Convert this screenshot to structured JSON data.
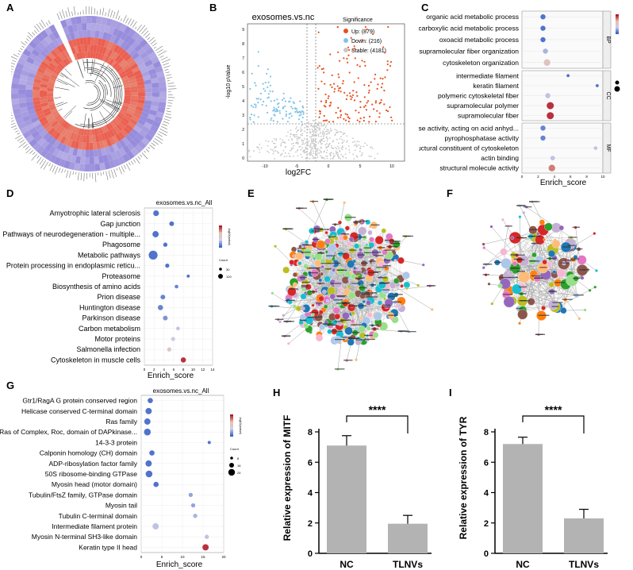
{
  "panel_labels": {
    "A": "A",
    "B": "B",
    "C": "C",
    "D": "D",
    "E": "E",
    "F": "F",
    "G": "G",
    "H": "H",
    "I": "I"
  },
  "colors": {
    "up": "#e8501d",
    "down": "#7fc3e6",
    "stable": "#c8c8c8",
    "bar": "#b3b3b3",
    "red": "#b2182b",
    "blue": "#3b63c8"
  },
  "icons": {
    "heatmap": "circular-heatmap-icon",
    "network": "network-graph-icon"
  },
  "chart_data": [
    {
      "id": "B",
      "type": "scatter",
      "title": "exosomes.vs.nc",
      "xlabel": "log2FC",
      "ylabel": "-log10 pValue",
      "legend": {
        "title": "Significance",
        "entries": [
          "Up: (879)",
          "Down: (216)",
          "Stable: (4181)"
        ],
        "placement": "top-right"
      },
      "series": [
        {
          "name": "Up",
          "count": 879
        },
        {
          "name": "Down",
          "count": 216
        },
        {
          "name": "Stable",
          "count": 4181
        }
      ]
    },
    {
      "id": "C",
      "type": "scatter",
      "xlabel": "Enrich_score",
      "xlim": [
        0,
        10
      ],
      "xticks": [
        "0",
        "2",
        "4",
        "6",
        "8",
        "10"
      ],
      "groups": [
        {
          "name": "BP",
          "terms": [
            "organic acid metabolic process",
            "carboxylic acid metabolic process",
            "oxoacid metabolic process",
            "supramolecular fiber organization",
            "cytoskeleton organization"
          ],
          "x": [
            2.6,
            2.6,
            2.6,
            2.9,
            3.1
          ],
          "color_val": [
            0.05,
            0.05,
            0.05,
            0.25,
            0.55
          ],
          "size": [
            1,
            1,
            1,
            1,
            1.3
          ]
        },
        {
          "name": "CC",
          "terms": [
            "intermediate filament",
            "keratin filament",
            "polymeric cytoskeletal fiber",
            "supramolecular polymer",
            "supramolecular fiber"
          ],
          "x": [
            5.7,
            9.3,
            3.2,
            3.5,
            3.5
          ],
          "color_val": [
            0.05,
            0.05,
            0.3,
            0.95,
            0.95
          ],
          "size": [
            0.6,
            0.6,
            1,
            1.4,
            1.4
          ]
        },
        {
          "name": "MF",
          "terms": [
            "hydrolase activity, acting on acid anhyd...",
            "pyrophosphatase activity",
            "structural constituent of cytoskeleton",
            "actin binding",
            "structural molecule activity"
          ],
          "x": [
            2.6,
            2.6,
            9.1,
            3.8,
            3.7
          ],
          "color_val": [
            0.1,
            0.1,
            0.3,
            0.3,
            0.8
          ],
          "size": [
            1,
            1,
            0.7,
            0.9,
            1.3
          ]
        }
      ]
    },
    {
      "id": "D",
      "type": "scatter",
      "title": "exosomes.vs.nc_All",
      "xlabel": "Enrich_score",
      "xlim": [
        0,
        14
      ],
      "xticks": [
        "0",
        "2",
        "4",
        "6",
        "8",
        "10",
        "12",
        "14"
      ],
      "legend": {
        "color_title": "-log10(pvalue)",
        "size_title": "Count",
        "sizes": [
          "30",
          "120"
        ]
      },
      "terms": [
        "Amyotrophic lateral sclerosis",
        "Gap junction",
        "Pathways of neurodegeneration - multiple...",
        "Phagosome",
        "Metabolic pathways",
        "Protein processing in endoplasmic reticu...",
        "Proteasome",
        "Biosynthesis of amino acids",
        "Prion disease",
        "Huntington disease",
        "Parkinson disease",
        "Carbon metabolism",
        "Motor proteins",
        "Salmonella infection",
        "Cytoskeleton in muscle cells"
      ],
      "x": [
        2.4,
        5.6,
        2.3,
        4.3,
        1.8,
        4.7,
        9.0,
        6.6,
        3.8,
        3.3,
        4.3,
        6.9,
        5.9,
        5.1,
        8.0
      ],
      "color_val": [
        0.05,
        0.05,
        0.05,
        0.05,
        0.05,
        0.05,
        0.05,
        0.1,
        0.1,
        0.1,
        0.15,
        0.3,
        0.35,
        0.5,
        0.95
      ],
      "size": [
        1.1,
        0.9,
        1.2,
        0.8,
        1.7,
        0.8,
        0.6,
        0.7,
        0.9,
        1.0,
        0.9,
        0.7,
        0.8,
        0.8,
        1.0
      ]
    },
    {
      "id": "G",
      "type": "scatter",
      "title": "exosomes.vs.nc_All",
      "xlabel": "Enrich_score",
      "xlim": [
        0,
        20
      ],
      "xticks": [
        "0",
        "5",
        "10",
        "15",
        "20"
      ],
      "legend": {
        "color_title": "-log10(pvalue)",
        "size_title": "Count",
        "sizes": [
          "8",
          "16",
          "24"
        ]
      },
      "terms": [
        "Gtr1/RagA G protein conserved region",
        "Helicase conserved C-terminal domain",
        "Ras family",
        "Ras of Complex, Roc, domain of DAPkinase...",
        "14-3-3 protein",
        "Calponin homology (CH) domain",
        "ADP-ribosylation factor family",
        "50S ribosome-binding GTPase",
        "Myosin head (motor domain)",
        "Tubulin/FtsZ family, GTPase domain",
        "Myosin tail",
        "Tubulin C-terminal domain",
        "Intermediate filament protein",
        "Myosin N-terminal SH3-like domain",
        "Keratin type II head"
      ],
      "x": [
        2.2,
        1.8,
        1.5,
        1.5,
        16.5,
        2.6,
        1.8,
        1.9,
        3.6,
        12.0,
        12.6,
        13.1,
        3.5,
        15.9,
        15.6
      ],
      "color_val": [
        0.05,
        0.05,
        0.05,
        0.05,
        0.05,
        0.05,
        0.05,
        0.05,
        0.05,
        0.2,
        0.2,
        0.25,
        0.3,
        0.3,
        0.95
      ],
      "size": [
        1.0,
        1.2,
        1.2,
        1.3,
        0.6,
        1.0,
        1.2,
        1.3,
        1.0,
        0.8,
        0.8,
        0.8,
        1.2,
        0.8,
        1.2
      ]
    },
    {
      "id": "H",
      "type": "bar",
      "categories": [
        "NC",
        "TLNVs"
      ],
      "values": [
        7.1,
        1.95
      ],
      "errors": [
        0.65,
        0.55
      ],
      "ylabel": "Relative expression of MITF",
      "ylim": [
        0,
        8
      ],
      "yticks": [
        "0",
        "2",
        "4",
        "6",
        "8"
      ],
      "significance": "****"
    },
    {
      "id": "I",
      "type": "bar",
      "categories": [
        "NC",
        "TLNVs"
      ],
      "values": [
        7.2,
        2.3
      ],
      "errors": [
        0.45,
        0.6
      ],
      "ylabel": "Relative expression of TYR",
      "ylim": [
        0,
        8
      ],
      "yticks": [
        "0",
        "2",
        "4",
        "6",
        "8"
      ],
      "significance": "****"
    }
  ]
}
